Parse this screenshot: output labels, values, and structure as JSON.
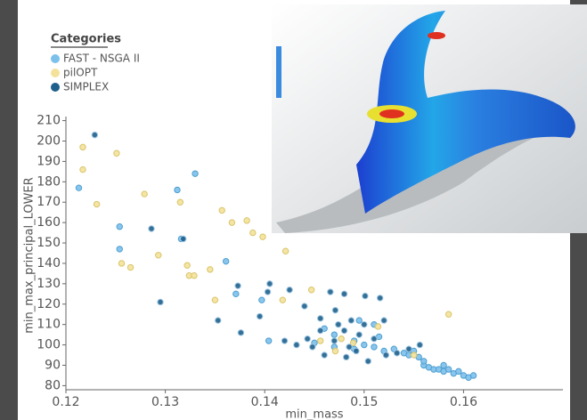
{
  "chart_data": {
    "type": "scatter",
    "legend_title": "Categories",
    "xlabel": "min_mass",
    "ylabel": "min_max_principal_LOWER",
    "xlim": [
      0.12,
      0.17
    ],
    "ylim": [
      78,
      212
    ],
    "xticks": [
      0.12,
      0.13,
      0.14,
      0.15,
      0.16
    ],
    "yticks": [
      80,
      90,
      100,
      110,
      120,
      130,
      140,
      150,
      160,
      170,
      180,
      190,
      200,
      210
    ],
    "series": [
      {
        "name": "FAST - NSGA II",
        "color": "#7cc0ec",
        "edge": "#4f9fd0",
        "x": [
          0.1213,
          0.1254,
          0.1254,
          0.1312,
          0.1316,
          0.133,
          0.1361,
          0.1371,
          0.1397,
          0.1404,
          0.145,
          0.147,
          0.149,
          0.15,
          0.151,
          0.152,
          0.153,
          0.154,
          0.155,
          0.1555,
          0.156,
          0.1565,
          0.157,
          0.1575,
          0.158,
          0.1585,
          0.159,
          0.1595,
          0.16,
          0.1605,
          0.161,
          0.158,
          0.156,
          0.1545,
          0.1515,
          0.1495,
          0.147,
          0.149,
          0.151,
          0.146
        ],
        "y": [
          177,
          158,
          147,
          176,
          152,
          184,
          141,
          125,
          122,
          102,
          101,
          99,
          98,
          100,
          99,
          97,
          98,
          96,
          97,
          94,
          90,
          89,
          88,
          88,
          87,
          88,
          86,
          87,
          85,
          84,
          85,
          90,
          92,
          95,
          104,
          112,
          105,
          102,
          110,
          108
        ]
      },
      {
        "name": "pilOPT",
        "color": "#f4e29a",
        "edge": "#d9c46a",
        "x": [
          0.1217,
          0.1217,
          0.1231,
          0.1251,
          0.1256,
          0.1265,
          0.1279,
          0.1293,
          0.1315,
          0.1322,
          0.1324,
          0.1329,
          0.1345,
          0.135,
          0.1357,
          0.1367,
          0.1382,
          0.1388,
          0.1398,
          0.1421,
          0.1418,
          0.1447,
          0.1471,
          0.1477,
          0.1489,
          0.1514,
          0.1585,
          0.155,
          0.1456
        ],
        "y": [
          197,
          186,
          169,
          194,
          140,
          138,
          174,
          144,
          170,
          139,
          134,
          134,
          137,
          122,
          166,
          160,
          161,
          155,
          153,
          146,
          122,
          127,
          97,
          103,
          101,
          109,
          115,
          95,
          102
        ]
      },
      {
        "name": "SIMPLEX",
        "color": "#1f5f8b",
        "edge": "#9cc6e4",
        "x": [
          0.1229,
          0.1286,
          0.1295,
          0.1318,
          0.1353,
          0.1373,
          0.1376,
          0.1405,
          0.1403,
          0.1395,
          0.1425,
          0.144,
          0.1466,
          0.1471,
          0.148,
          0.1501,
          0.1516,
          0.1487,
          0.1474,
          0.1456,
          0.1443,
          0.1448,
          0.142,
          0.1432,
          0.146,
          0.1482,
          0.1492,
          0.1504,
          0.1522,
          0.1533,
          0.1545,
          0.1556,
          0.1495,
          0.151,
          0.147,
          0.1485,
          0.15,
          0.148,
          0.1456,
          0.152
        ],
        "y": [
          203,
          157,
          121,
          152,
          112,
          129,
          106,
          130,
          126,
          114,
          127,
          119,
          126,
          117,
          125,
          124,
          123,
          112,
          110,
          107,
          103,
          99,
          102,
          100,
          95,
          94,
          97,
          92,
          95,
          96,
          98,
          100,
          105,
          103,
          102,
          99,
          110,
          107,
          113,
          112
        ]
      }
    ]
  }
}
